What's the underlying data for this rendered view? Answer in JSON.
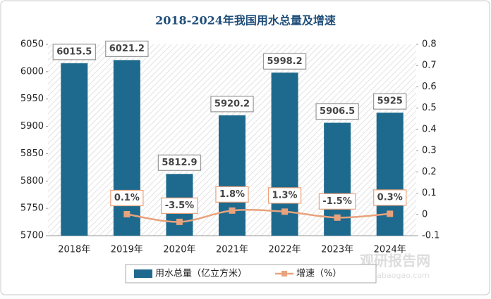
{
  "chart_data": {
    "type": "bar_line",
    "title": "2018-2024年我国用水总量及增速",
    "categories": [
      "2018年",
      "2019年",
      "2020年",
      "2021年",
      "2022年",
      "2023年",
      "2024年"
    ],
    "series": [
      {
        "name": "用水总量（亿立方米）",
        "type": "bar",
        "color": "#1d6a8e",
        "values": [
          6015.5,
          6021.2,
          5812.9,
          5920.2,
          5998.2,
          5906.5,
          5925
        ]
      },
      {
        "name": "增速（%）",
        "type": "line",
        "axis": "y2",
        "color": "#e9a27c",
        "values": [
          null,
          0.001,
          -0.035,
          0.018,
          0.013,
          -0.015,
          0.003
        ],
        "value_labels": [
          null,
          "0.1%",
          "-3.5%",
          "1.8%",
          "1.3%",
          "-1.5%",
          "0.3%"
        ]
      }
    ],
    "ylim": [
      5700,
      6050
    ],
    "yticks": [
      5700,
      5750,
      5800,
      5850,
      5900,
      5950,
      6000,
      6050
    ],
    "y2lim": [
      -0.1,
      0.8
    ],
    "y2ticks": [
      -0.1,
      0,
      0.1,
      0.2,
      0.3,
      0.4,
      0.5,
      0.6,
      0.7,
      0.8
    ],
    "legend": "bottom",
    "watermark": [
      "观研报告网",
      "chinabaogao.com"
    ]
  }
}
